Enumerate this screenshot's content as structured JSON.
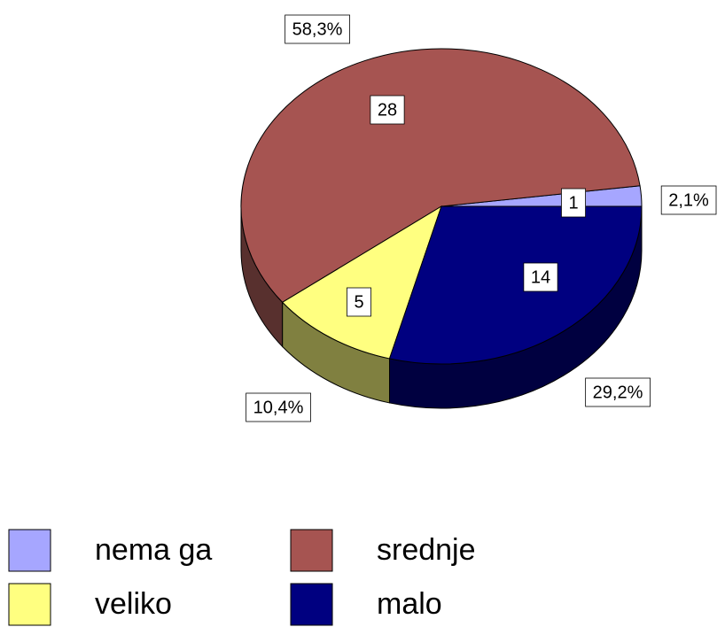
{
  "chart_data": {
    "type": "pie3d",
    "categories": [
      "nema ga",
      "srednje",
      "veliko",
      "malo"
    ],
    "values": [
      1,
      28,
      5,
      14
    ],
    "percentages": [
      2.1,
      58.3,
      10.4,
      29.2
    ],
    "percentage_labels": [
      "2,1%",
      "58,3%",
      "10,4%",
      "29,2%"
    ],
    "colors": [
      "#a6a6ff",
      "#a65451",
      "#ffff80",
      "#000080"
    ],
    "side_colors": [
      "#5c5c8c",
      "#58302e",
      "#808040",
      "#000040"
    ],
    "legend": "bottom"
  }
}
